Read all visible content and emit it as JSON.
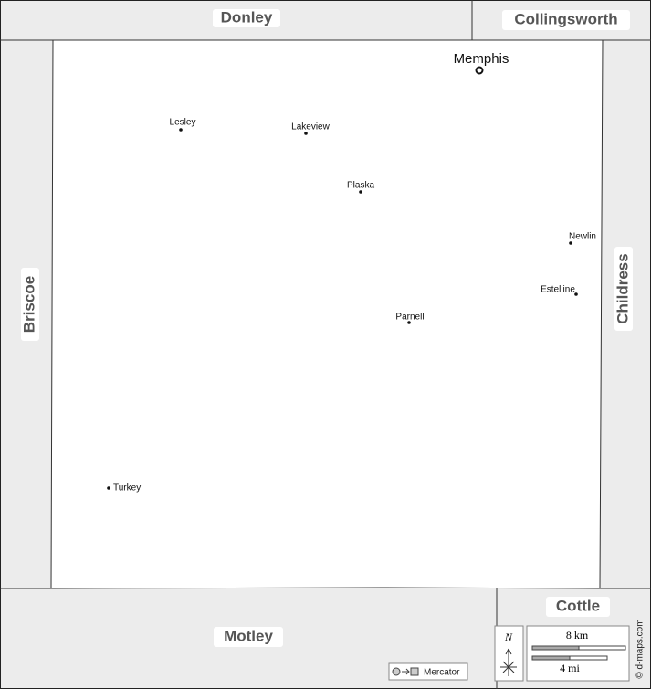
{
  "neighbors": [
    {
      "label": "Donley"
    },
    {
      "label": "Collingsworth"
    },
    {
      "label": "Briscoe"
    },
    {
      "label": "Childress"
    },
    {
      "label": "Motley"
    },
    {
      "label": "Cottle"
    }
  ],
  "county_seat": {
    "label": "Memphis"
  },
  "towns": [
    {
      "label": "Lesley"
    },
    {
      "label": "Lakeview"
    },
    {
      "label": "Plaska"
    },
    {
      "label": "Newlin"
    },
    {
      "label": "Estelline"
    },
    {
      "label": "Parnell"
    },
    {
      "label": "Turkey"
    }
  ],
  "compass": "N",
  "scale": {
    "km": "8 km",
    "mi": "4 mi"
  },
  "projection": "Mercator",
  "credit": "© d-maps.com"
}
